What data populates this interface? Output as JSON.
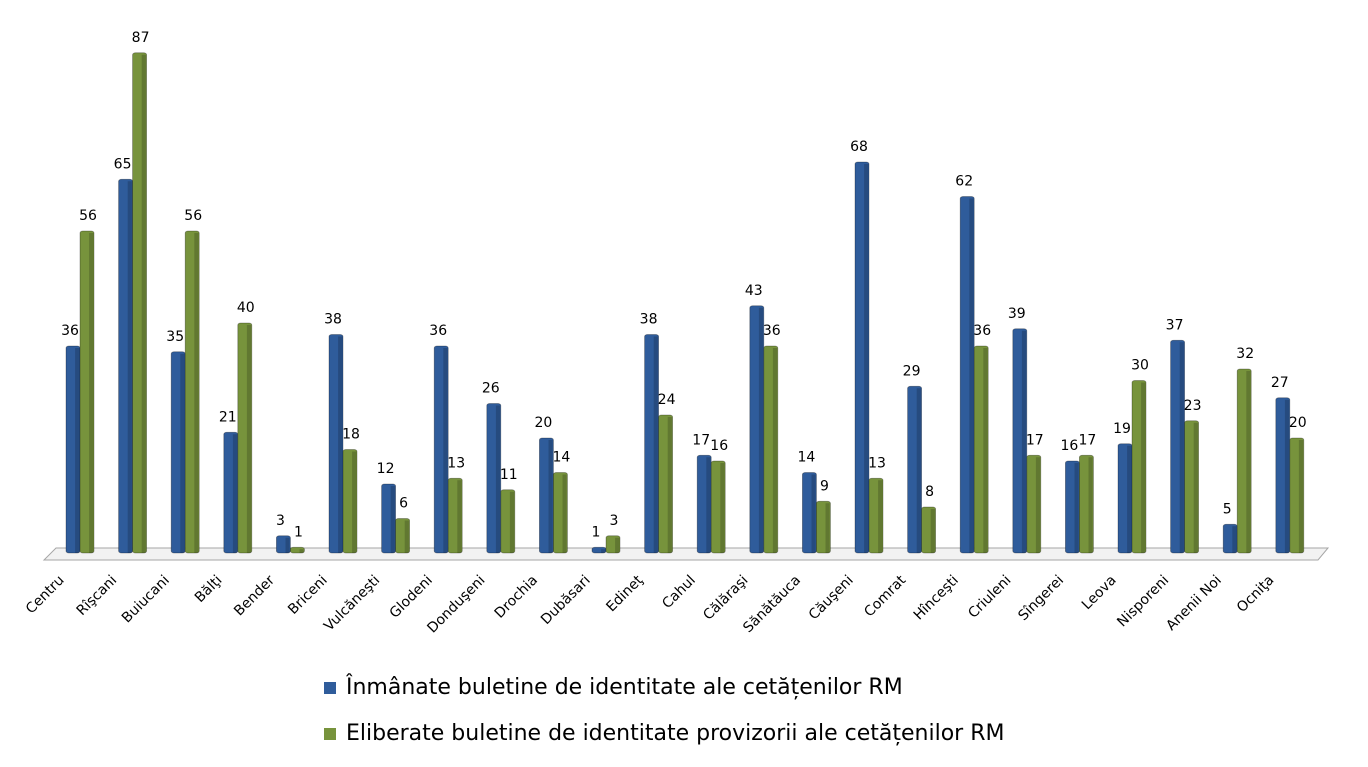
{
  "chart_data": {
    "type": "bar",
    "categories": [
      "Centru",
      "Rîşcani",
      "Buiucani",
      "Bălţi",
      "Bender",
      "Briceni",
      "Vulcăneşti",
      "Glodeni",
      "Donduşeni",
      "Drochia",
      "Dubăsari",
      "Edineţ",
      "Cahul",
      "Călăraşi",
      "Sănătăuca",
      "Căuşeni",
      "Comrat",
      "Hînceşti",
      "Criuleni",
      "Sîngerei",
      "Leova",
      "Nisporeni",
      "Anenii Noi",
      "Ocniţa"
    ],
    "series": [
      {
        "name": "Înmânate buletine de identitate ale cetățenilor RM",
        "color": "#2f5c9b",
        "values": [
          36,
          65,
          35,
          21,
          3,
          38,
          12,
          36,
          26,
          20,
          1,
          38,
          17,
          43,
          14,
          68,
          29,
          62,
          39,
          16,
          19,
          37,
          5,
          27
        ]
      },
      {
        "name": "Eliberate buletine de identitate provizorii ale cetățenilor RM",
        "color": "#77933c",
        "values": [
          56,
          87,
          56,
          40,
          1,
          18,
          6,
          13,
          11,
          14,
          3,
          24,
          16,
          36,
          9,
          13,
          8,
          36,
          17,
          17,
          30,
          23,
          32,
          20
        ]
      }
    ],
    "data_labels": true
  }
}
